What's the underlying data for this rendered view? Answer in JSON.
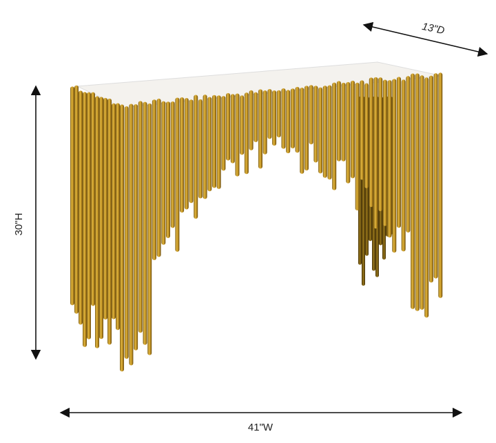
{
  "dimensions": {
    "depth": "13\"D",
    "height": "30\"H",
    "width": "41\"W"
  }
}
